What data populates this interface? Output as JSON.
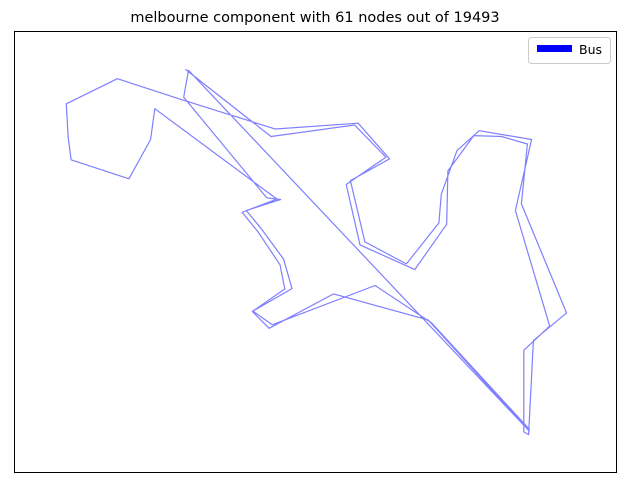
{
  "chart_data": {
    "type": "line",
    "title": "melbourne component with 61 nodes out of 19493",
    "xlabel": "",
    "ylabel": "",
    "xlim": [
      0,
      100
    ],
    "ylim": [
      0,
      100
    ],
    "axes_ticks": false,
    "grid": false,
    "legend_position": "top-right",
    "series": [
      {
        "name": "Bus",
        "color": "#0000ff",
        "line_alpha": 0.5,
        "points": [
          [
            28.4,
            91.4
          ],
          [
            42.6,
            76.2
          ],
          [
            56.5,
            78.8
          ],
          [
            61.7,
            71.5
          ],
          [
            55.1,
            65.3
          ],
          [
            57.4,
            51.6
          ],
          [
            66.5,
            46.0
          ],
          [
            71.8,
            56.3
          ],
          [
            72.0,
            68.4
          ],
          [
            76.3,
            76.4
          ],
          [
            80.9,
            76.2
          ],
          [
            85.2,
            74.5
          ],
          [
            84.2,
            60.9
          ],
          [
            91.7,
            36.2
          ],
          [
            86.2,
            29.9
          ],
          [
            85.4,
            8.6
          ],
          [
            84.6,
            9.2
          ],
          [
            84.6,
            27.7
          ],
          [
            88.9,
            33.2
          ],
          [
            83.2,
            59.4
          ],
          [
            85.9,
            75.5
          ],
          [
            77.2,
            77.5
          ],
          [
            73.5,
            73.0
          ],
          [
            70.9,
            63.1
          ],
          [
            70.5,
            56.6
          ],
          [
            65.1,
            47.3
          ],
          [
            58.2,
            52.3
          ],
          [
            55.8,
            66.2
          ],
          [
            62.3,
            71.1
          ],
          [
            57.1,
            79.2
          ],
          [
            43.3,
            77.9
          ],
          [
            27.9,
            84.5
          ],
          [
            17.1,
            89.3
          ],
          [
            8.6,
            83.6
          ],
          [
            8.9,
            76.2
          ],
          [
            9.4,
            70.9
          ],
          [
            19.0,
            66.6
          ],
          [
            22.6,
            75.5
          ],
          [
            23.3,
            82.5
          ],
          [
            43.6,
            62.0
          ],
          [
            37.8,
            59.0
          ],
          [
            40.5,
            54.5
          ],
          [
            44.1,
            47.1
          ],
          [
            44.9,
            41.6
          ],
          [
            39.5,
            36.5
          ],
          [
            42.3,
            32.7
          ],
          [
            53.0,
            40.5
          ],
          [
            68.7,
            34.6
          ],
          [
            85.5,
            9.4
          ],
          [
            28.9,
            91.2
          ],
          [
            28.1,
            85.1
          ],
          [
            41.9,
            62.3
          ],
          [
            44.2,
            61.9
          ],
          [
            38.5,
            59.4
          ],
          [
            41.1,
            55.1
          ],
          [
            44.7,
            48.4
          ],
          [
            46.1,
            41.7
          ],
          [
            39.6,
            36.6
          ],
          [
            42.8,
            33.5
          ],
          [
            59.9,
            42.4
          ],
          [
            69.3,
            33.9
          ],
          [
            85.6,
            9.7
          ]
        ]
      }
    ]
  }
}
